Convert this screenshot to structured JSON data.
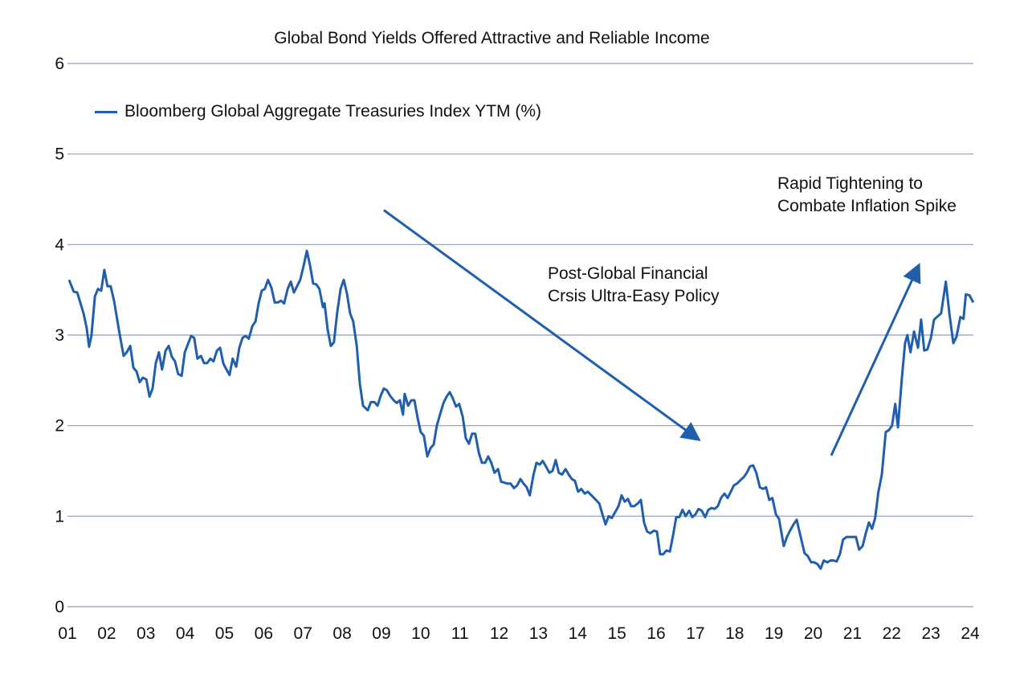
{
  "chart_data": {
    "type": "line",
    "title": "Global Bond Yields Offered Attractive and Reliable Income",
    "xlabel": "",
    "ylabel": "",
    "ylim": [
      0,
      6
    ],
    "xlim": [
      2001,
      2024
    ],
    "yticks": [
      "0",
      "1",
      "2",
      "3",
      "4",
      "5",
      "6"
    ],
    "xticks": [
      "01",
      "02",
      "03",
      "04",
      "05",
      "06",
      "07",
      "08",
      "09",
      "10",
      "11",
      "12",
      "13",
      "14",
      "15",
      "16",
      "17",
      "18",
      "19",
      "20",
      "21",
      "22",
      "23",
      "24"
    ],
    "grid": "horizontal",
    "legend_position": "top-left",
    "colors": {
      "line": "#1f5fad",
      "grid": "#8e9cb3",
      "text": "#111111"
    },
    "annotations": [
      {
        "lines": [
          "Post-Global Financial",
          "Crsis Ultra-Easy Policy"
        ],
        "arrow": "down-right"
      },
      {
        "lines": [
          "Rapid Tightening to",
          "Combate Inflation Spike"
        ],
        "arrow": "up-right"
      }
    ],
    "series": [
      {
        "name": "Bloomberg Global Aggregate Treasuries Index YTM (%)",
        "points": [
          [
            2001.04,
            3.61
          ],
          [
            2001.16,
            3.48
          ],
          [
            2001.25,
            3.47
          ],
          [
            2001.41,
            3.24
          ],
          [
            2001.49,
            3.08
          ],
          [
            2001.55,
            2.87
          ],
          [
            2001.61,
            2.99
          ],
          [
            2001.7,
            3.43
          ],
          [
            2001.78,
            3.51
          ],
          [
            2001.86,
            3.49
          ],
          [
            2001.94,
            3.72
          ],
          [
            2002.02,
            3.54
          ],
          [
            2002.1,
            3.54
          ],
          [
            2002.19,
            3.37
          ],
          [
            2002.31,
            3.06
          ],
          [
            2002.43,
            2.77
          ],
          [
            2002.51,
            2.81
          ],
          [
            2002.6,
            2.88
          ],
          [
            2002.68,
            2.64
          ],
          [
            2002.76,
            2.6
          ],
          [
            2002.84,
            2.48
          ],
          [
            2002.92,
            2.53
          ],
          [
            2003.01,
            2.51
          ],
          [
            2003.09,
            2.32
          ],
          [
            2003.17,
            2.41
          ],
          [
            2003.25,
            2.69
          ],
          [
            2003.33,
            2.81
          ],
          [
            2003.41,
            2.62
          ],
          [
            2003.5,
            2.83
          ],
          [
            2003.58,
            2.88
          ],
          [
            2003.66,
            2.76
          ],
          [
            2003.74,
            2.71
          ],
          [
            2003.82,
            2.57
          ],
          [
            2003.91,
            2.55
          ],
          [
            2003.99,
            2.81
          ],
          [
            2004.07,
            2.9
          ],
          [
            2004.15,
            2.99
          ],
          [
            2004.23,
            2.97
          ],
          [
            2004.31,
            2.74
          ],
          [
            2004.4,
            2.77
          ],
          [
            2004.48,
            2.69
          ],
          [
            2004.56,
            2.69
          ],
          [
            2004.64,
            2.74
          ],
          [
            2004.72,
            2.71
          ],
          [
            2004.81,
            2.83
          ],
          [
            2004.89,
            2.86
          ],
          [
            2004.97,
            2.69
          ],
          [
            2005.05,
            2.62
          ],
          [
            2005.13,
            2.56
          ],
          [
            2005.21,
            2.74
          ],
          [
            2005.3,
            2.65
          ],
          [
            2005.38,
            2.86
          ],
          [
            2005.46,
            2.97
          ],
          [
            2005.54,
            2.99
          ],
          [
            2005.62,
            2.96
          ],
          [
            2005.71,
            3.1
          ],
          [
            2005.79,
            3.15
          ],
          [
            2005.87,
            3.35
          ],
          [
            2005.95,
            3.49
          ],
          [
            2006.03,
            3.51
          ],
          [
            2006.11,
            3.61
          ],
          [
            2006.2,
            3.52
          ],
          [
            2006.28,
            3.36
          ],
          [
            2006.36,
            3.36
          ],
          [
            2006.44,
            3.38
          ],
          [
            2006.52,
            3.35
          ],
          [
            2006.61,
            3.51
          ],
          [
            2006.69,
            3.59
          ],
          [
            2006.77,
            3.47
          ],
          [
            2006.85,
            3.54
          ],
          [
            2006.93,
            3.61
          ],
          [
            2007.02,
            3.77
          ],
          [
            2007.1,
            3.93
          ],
          [
            2007.18,
            3.77
          ],
          [
            2007.26,
            3.57
          ],
          [
            2007.34,
            3.56
          ],
          [
            2007.42,
            3.51
          ],
          [
            2007.51,
            3.31
          ],
          [
            2007.55,
            3.35
          ],
          [
            2007.63,
            3.06
          ],
          [
            2007.71,
            2.88
          ],
          [
            2007.79,
            2.92
          ],
          [
            2007.87,
            3.24
          ],
          [
            2007.96,
            3.51
          ],
          [
            2008.04,
            3.61
          ],
          [
            2008.12,
            3.46
          ],
          [
            2008.2,
            3.24
          ],
          [
            2008.28,
            3.15
          ],
          [
            2008.37,
            2.88
          ],
          [
            2008.45,
            2.46
          ],
          [
            2008.53,
            2.22
          ],
          [
            2008.65,
            2.17
          ],
          [
            2008.73,
            2.26
          ],
          [
            2008.82,
            2.26
          ],
          [
            2008.9,
            2.22
          ],
          [
            2008.98,
            2.33
          ],
          [
            2009.06,
            2.41
          ],
          [
            2009.14,
            2.39
          ],
          [
            2009.22,
            2.33
          ],
          [
            2009.31,
            2.28
          ],
          [
            2009.39,
            2.25
          ],
          [
            2009.47,
            2.28
          ],
          [
            2009.55,
            2.12
          ],
          [
            2009.59,
            2.35
          ],
          [
            2009.68,
            2.22
          ],
          [
            2009.76,
            2.28
          ],
          [
            2009.84,
            2.28
          ],
          [
            2009.92,
            2.09
          ],
          [
            2010.0,
            1.93
          ],
          [
            2010.08,
            1.89
          ],
          [
            2010.17,
            1.66
          ],
          [
            2010.25,
            1.75
          ],
          [
            2010.33,
            1.79
          ],
          [
            2010.41,
            2.0
          ],
          [
            2010.49,
            2.12
          ],
          [
            2010.58,
            2.25
          ],
          [
            2010.66,
            2.32
          ],
          [
            2010.74,
            2.37
          ],
          [
            2010.82,
            2.3
          ],
          [
            2010.9,
            2.21
          ],
          [
            2010.98,
            2.24
          ],
          [
            2011.07,
            2.1
          ],
          [
            2011.15,
            1.86
          ],
          [
            2011.23,
            1.8
          ],
          [
            2011.31,
            1.91
          ],
          [
            2011.39,
            1.91
          ],
          [
            2011.48,
            1.7
          ],
          [
            2011.56,
            1.59
          ],
          [
            2011.64,
            1.59
          ],
          [
            2011.72,
            1.66
          ],
          [
            2011.8,
            1.59
          ],
          [
            2011.88,
            1.48
          ],
          [
            2011.97,
            1.52
          ],
          [
            2012.05,
            1.38
          ],
          [
            2012.13,
            1.37
          ],
          [
            2012.21,
            1.36
          ],
          [
            2012.29,
            1.36
          ],
          [
            2012.38,
            1.31
          ],
          [
            2012.46,
            1.34
          ],
          [
            2012.54,
            1.41
          ],
          [
            2012.62,
            1.36
          ],
          [
            2012.7,
            1.32
          ],
          [
            2012.78,
            1.23
          ],
          [
            2012.87,
            1.45
          ],
          [
            2012.95,
            1.59
          ],
          [
            2013.03,
            1.57
          ],
          [
            2013.11,
            1.61
          ],
          [
            2013.19,
            1.55
          ],
          [
            2013.28,
            1.48
          ],
          [
            2013.36,
            1.5
          ],
          [
            2013.44,
            1.62
          ],
          [
            2013.52,
            1.48
          ],
          [
            2013.6,
            1.46
          ],
          [
            2013.69,
            1.52
          ],
          [
            2013.77,
            1.46
          ],
          [
            2013.85,
            1.41
          ],
          [
            2013.93,
            1.39
          ],
          [
            2014.01,
            1.27
          ],
          [
            2014.09,
            1.3
          ],
          [
            2014.18,
            1.25
          ],
          [
            2014.26,
            1.27
          ],
          [
            2014.42,
            1.2
          ],
          [
            2014.55,
            1.14
          ],
          [
            2014.63,
            1.02
          ],
          [
            2014.71,
            0.91
          ],
          [
            2014.79,
            1.0
          ],
          [
            2014.87,
            0.98
          ],
          [
            2014.95,
            1.04
          ],
          [
            2015.04,
            1.11
          ],
          [
            2015.12,
            1.23
          ],
          [
            2015.2,
            1.16
          ],
          [
            2015.28,
            1.19
          ],
          [
            2015.36,
            1.11
          ],
          [
            2015.44,
            1.11
          ],
          [
            2015.53,
            1.14
          ],
          [
            2015.61,
            1.18
          ],
          [
            2015.69,
            0.93
          ],
          [
            2015.77,
            0.83
          ],
          [
            2015.85,
            0.81
          ],
          [
            2015.94,
            0.84
          ],
          [
            2016.02,
            0.83
          ],
          [
            2016.1,
            0.58
          ],
          [
            2016.18,
            0.58
          ],
          [
            2016.26,
            0.62
          ],
          [
            2016.35,
            0.61
          ],
          [
            2016.43,
            0.79
          ],
          [
            2016.51,
            0.99
          ],
          [
            2016.59,
            0.99
          ],
          [
            2016.67,
            1.07
          ],
          [
            2016.75,
            1.0
          ],
          [
            2016.84,
            1.06
          ],
          [
            2016.92,
            0.99
          ],
          [
            2017.0,
            1.02
          ],
          [
            2017.08,
            1.08
          ],
          [
            2017.16,
            1.06
          ],
          [
            2017.25,
            0.99
          ],
          [
            2017.33,
            1.07
          ],
          [
            2017.41,
            1.09
          ],
          [
            2017.49,
            1.08
          ],
          [
            2017.57,
            1.11
          ],
          [
            2017.65,
            1.2
          ],
          [
            2017.74,
            1.25
          ],
          [
            2017.82,
            1.2
          ],
          [
            2017.9,
            1.27
          ],
          [
            2017.98,
            1.34
          ],
          [
            2018.06,
            1.36
          ],
          [
            2018.15,
            1.4
          ],
          [
            2018.23,
            1.43
          ],
          [
            2018.31,
            1.48
          ],
          [
            2018.39,
            1.55
          ],
          [
            2018.47,
            1.56
          ],
          [
            2018.55,
            1.48
          ],
          [
            2018.64,
            1.32
          ],
          [
            2018.72,
            1.3
          ],
          [
            2018.8,
            1.32
          ],
          [
            2018.88,
            1.18
          ],
          [
            2018.96,
            1.2
          ],
          [
            2019.05,
            1.02
          ],
          [
            2019.13,
            0.97
          ],
          [
            2019.25,
            0.67
          ],
          [
            2019.33,
            0.77
          ],
          [
            2019.41,
            0.84
          ],
          [
            2019.5,
            0.91
          ],
          [
            2019.58,
            0.96
          ],
          [
            2019.66,
            0.81
          ],
          [
            2019.78,
            0.59
          ],
          [
            2019.86,
            0.56
          ],
          [
            2019.95,
            0.49
          ],
          [
            2020.03,
            0.49
          ],
          [
            2020.11,
            0.47
          ],
          [
            2020.19,
            0.42
          ],
          [
            2020.27,
            0.51
          ],
          [
            2020.36,
            0.49
          ],
          [
            2020.44,
            0.51
          ],
          [
            2020.52,
            0.51
          ],
          [
            2020.6,
            0.5
          ],
          [
            2020.68,
            0.58
          ],
          [
            2020.76,
            0.74
          ],
          [
            2020.85,
            0.77
          ],
          [
            2020.93,
            0.77
          ],
          [
            2021.01,
            0.77
          ],
          [
            2021.09,
            0.77
          ],
          [
            2021.17,
            0.63
          ],
          [
            2021.26,
            0.67
          ],
          [
            2021.34,
            0.81
          ],
          [
            2021.42,
            0.93
          ],
          [
            2021.5,
            0.86
          ],
          [
            2021.58,
            0.98
          ],
          [
            2021.66,
            1.26
          ],
          [
            2021.75,
            1.46
          ],
          [
            2021.85,
            1.93
          ],
          [
            2021.93,
            1.95
          ],
          [
            2022.01,
            2.0
          ],
          [
            2022.09,
            2.24
          ],
          [
            2022.16,
            1.98
          ],
          [
            2022.26,
            2.53
          ],
          [
            2022.34,
            2.91
          ],
          [
            2022.4,
            3.0
          ],
          [
            2022.48,
            2.81
          ],
          [
            2022.57,
            3.04
          ],
          [
            2022.67,
            2.86
          ],
          [
            2022.75,
            3.17
          ],
          [
            2022.83,
            2.83
          ],
          [
            2022.91,
            2.84
          ],
          [
            2023.0,
            2.97
          ],
          [
            2023.08,
            3.17
          ],
          [
            2023.18,
            3.21
          ],
          [
            2023.26,
            3.24
          ],
          [
            2023.38,
            3.59
          ],
          [
            2023.47,
            3.24
          ],
          [
            2023.57,
            2.91
          ],
          [
            2023.65,
            2.98
          ],
          [
            2023.75,
            3.2
          ],
          [
            2023.83,
            3.18
          ],
          [
            2023.89,
            3.45
          ],
          [
            2023.98,
            3.44
          ],
          [
            2024.08,
            3.36
          ]
        ]
      }
    ]
  }
}
